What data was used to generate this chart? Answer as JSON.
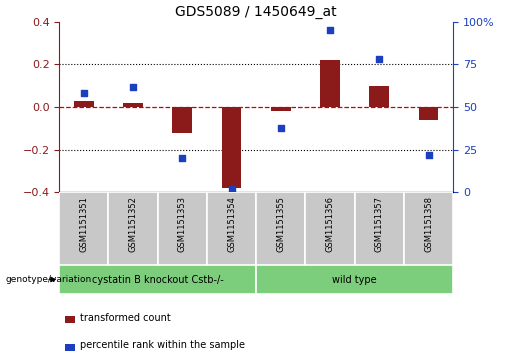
{
  "title": "GDS5089 / 1450649_at",
  "samples": [
    "GSM1151351",
    "GSM1151352",
    "GSM1151353",
    "GSM1151354",
    "GSM1151355",
    "GSM1151356",
    "GSM1151357",
    "GSM1151358"
  ],
  "transformed_count": [
    0.03,
    0.02,
    -0.12,
    -0.38,
    -0.02,
    0.22,
    0.1,
    -0.06
  ],
  "percentile_rank": [
    58,
    62,
    20,
    2,
    38,
    95,
    78,
    22
  ],
  "group1_indices": [
    0,
    1,
    2,
    3
  ],
  "group2_indices": [
    4,
    5,
    6,
    7
  ],
  "group1_label": "cystatin B knockout Cstb-/-",
  "group2_label": "wild type",
  "group_row_label": "genotype/variation",
  "legend_red": "transformed count",
  "legend_blue": "percentile rank within the sample",
  "ylim_left": [
    -0.4,
    0.4
  ],
  "ylim_right": [
    0,
    100
  ],
  "yticks_left": [
    -0.4,
    -0.2,
    0.0,
    0.2,
    0.4
  ],
  "yticks_right": [
    0,
    25,
    50,
    75,
    100
  ],
  "bar_color": "#8B1A1A",
  "dot_color": "#1C3FBF",
  "zero_line_color": "#CC0000",
  "tick_area_bg": "#C8C8C8",
  "group_bg": "#7CCD7C",
  "bar_width": 0.4
}
